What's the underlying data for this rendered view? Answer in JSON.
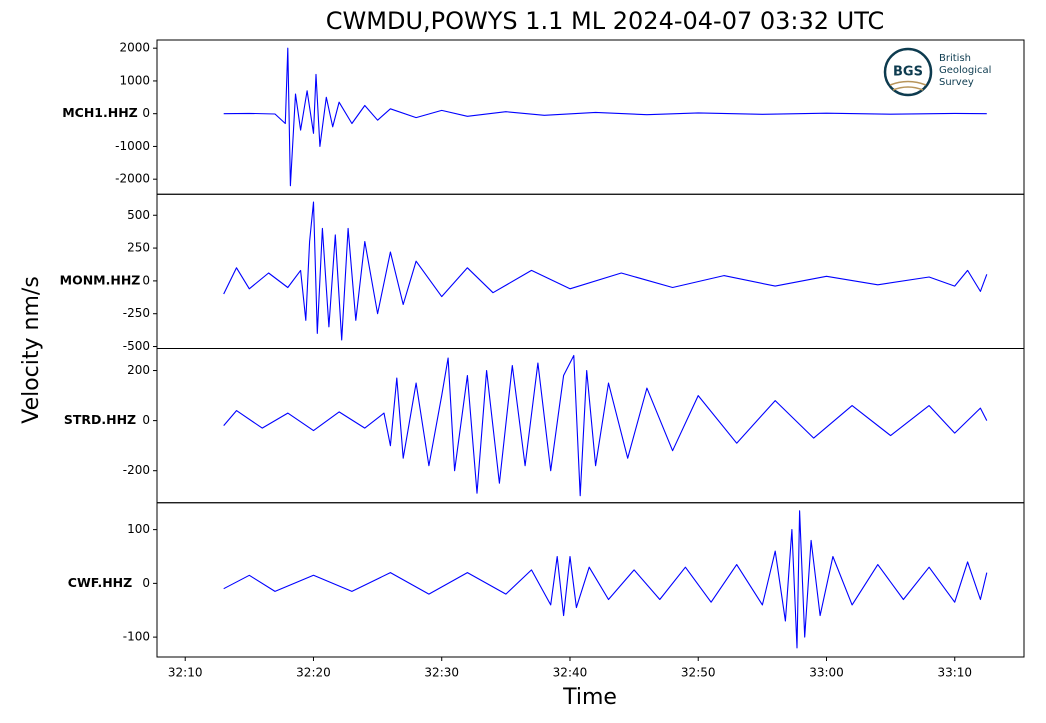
{
  "figure": {
    "title": "CWMDU,POWYS 1.1 ML   2024-04-07 03:32 UTC",
    "ylabel": "Velocity nm/s",
    "xlabel": "Time",
    "logo": {
      "abbreviation": "BGS",
      "lines": [
        "British",
        "Geological",
        "Survey"
      ]
    }
  },
  "chart_data": [
    {
      "type": "line",
      "name": "MCH1.HHZ",
      "color": "#0000ff",
      "xlim": [
        7.8,
        75.4
      ],
      "ylim": [
        -2460,
        2250
      ],
      "yticks": [
        2000,
        1000,
        0,
        -1000,
        -2000
      ],
      "x": [
        13,
        15,
        17,
        17.8,
        18,
        18.2,
        18.6,
        19,
        19.5,
        20,
        20.2,
        20.5,
        21,
        21.5,
        22,
        23,
        24,
        25,
        26,
        28,
        30,
        32,
        35,
        38,
        42,
        46,
        50,
        55,
        60,
        65,
        70,
        72.5
      ],
      "values": [
        0,
        10,
        -10,
        -300,
        2000,
        -2200,
        600,
        -500,
        700,
        -600,
        1200,
        -1000,
        500,
        -400,
        350,
        -300,
        250,
        -200,
        150,
        -120,
        100,
        -80,
        60,
        -50,
        40,
        -30,
        25,
        -20,
        15,
        -15,
        10,
        0
      ]
    },
    {
      "type": "line",
      "name": "MONM.HHZ",
      "color": "#0000ff",
      "xlim": [
        7.8,
        75.4
      ],
      "ylim": [
        -515,
        660
      ],
      "yticks": [
        500,
        250,
        0,
        -250,
        -500
      ],
      "x": [
        13,
        14,
        15,
        16.5,
        18,
        19,
        19.4,
        19.7,
        20,
        20.3,
        20.7,
        21.2,
        21.7,
        22.2,
        22.7,
        23.3,
        24,
        25,
        26,
        27,
        28,
        30,
        32,
        34,
        37,
        40,
        44,
        48,
        52,
        56,
        60,
        64,
        68,
        70,
        71,
        72,
        72.5
      ],
      "values": [
        -100,
        100,
        -60,
        60,
        -50,
        80,
        -300,
        300,
        600,
        -400,
        400,
        -350,
        350,
        -450,
        400,
        -300,
        300,
        -250,
        220,
        -180,
        150,
        -120,
        100,
        -90,
        80,
        -60,
        60,
        -50,
        40,
        -40,
        35,
        -30,
        30,
        -40,
        80,
        -80,
        50
      ]
    },
    {
      "type": "line",
      "name": "STRD.HHZ",
      "color": "#0000ff",
      "xlim": [
        7.8,
        75.4
      ],
      "ylim": [
        -328,
        288
      ],
      "yticks": [
        200,
        0,
        -200
      ],
      "x": [
        13,
        14,
        16,
        18,
        20,
        22,
        24,
        25.5,
        26,
        26.5,
        27,
        28,
        29,
        30,
        30.5,
        31,
        32,
        32.75,
        33.5,
        34.5,
        35.5,
        36.5,
        37.5,
        38.5,
        39.5,
        40.3,
        40.8,
        41.3,
        42,
        43,
        44.5,
        46,
        48,
        50,
        53,
        56,
        59,
        62,
        65,
        68,
        70,
        72,
        72.5
      ],
      "values": [
        -20,
        40,
        -30,
        30,
        -40,
        35,
        -30,
        30,
        -100,
        170,
        -150,
        150,
        -180,
        100,
        250,
        -200,
        180,
        -290,
        200,
        -250,
        220,
        -180,
        230,
        -200,
        180,
        260,
        -300,
        200,
        -180,
        150,
        -150,
        130,
        -120,
        100,
        -90,
        80,
        -70,
        60,
        -60,
        60,
        -50,
        50,
        0
      ]
    },
    {
      "type": "line",
      "name": "CWF.HHZ",
      "color": "#0000ff",
      "xlim": [
        7.8,
        75.4
      ],
      "ylim": [
        -137,
        150
      ],
      "yticks": [
        100,
        0,
        -100
      ],
      "xticks": [
        {
          "value": 10,
          "label": "32:10"
        },
        {
          "value": 20,
          "label": "32:20"
        },
        {
          "value": 30,
          "label": "32:30"
        },
        {
          "value": 40,
          "label": "32:40"
        },
        {
          "value": 50,
          "label": "32:50"
        },
        {
          "value": 60,
          "label": "33:00"
        },
        {
          "value": 70,
          "label": "33:10"
        }
      ],
      "x": [
        13,
        15,
        17,
        20,
        23,
        26,
        29,
        32,
        35,
        37,
        38.5,
        39,
        39.5,
        40,
        40.5,
        41.5,
        43,
        45,
        47,
        49,
        51,
        53,
        55,
        56,
        56.8,
        57.3,
        57.7,
        57.9,
        58.3,
        58.8,
        59.5,
        60.5,
        62,
        64,
        66,
        68,
        70,
        71,
        72,
        72.5
      ],
      "values": [
        -10,
        15,
        -15,
        15,
        -15,
        20,
        -20,
        20,
        -20,
        25,
        -40,
        50,
        -60,
        50,
        -45,
        30,
        -30,
        25,
        -30,
        30,
        -35,
        35,
        -40,
        60,
        -70,
        100,
        -120,
        135,
        -100,
        80,
        -60,
        50,
        -40,
        35,
        -30,
        30,
        -35,
        40,
        -30,
        20
      ]
    }
  ]
}
